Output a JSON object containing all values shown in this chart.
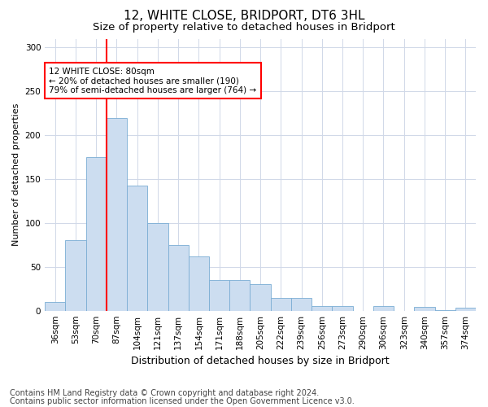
{
  "title": "12, WHITE CLOSE, BRIDPORT, DT6 3HL",
  "subtitle": "Size of property relative to detached houses in Bridport",
  "xlabel": "Distribution of detached houses by size in Bridport",
  "ylabel": "Number of detached properties",
  "categories": [
    "36sqm",
    "53sqm",
    "70sqm",
    "87sqm",
    "104sqm",
    "121sqm",
    "137sqm",
    "154sqm",
    "171sqm",
    "188sqm",
    "205sqm",
    "222sqm",
    "239sqm",
    "256sqm",
    "273sqm",
    "290sqm",
    "306sqm",
    "323sqm",
    "340sqm",
    "357sqm",
    "374sqm"
  ],
  "values": [
    10,
    80,
    175,
    220,
    143,
    100,
    75,
    62,
    35,
    35,
    30,
    15,
    15,
    5,
    5,
    0,
    5,
    0,
    4,
    1,
    3
  ],
  "bar_color": "#ccddf0",
  "bar_edge_color": "#7aadd4",
  "grid_color": "#d0d8e8",
  "vline_x": 2.5,
  "vline_color": "red",
  "annotation_text": "12 WHITE CLOSE: 80sqm\n← 20% of detached houses are smaller (190)\n79% of semi-detached houses are larger (764) →",
  "annotation_box_color": "white",
  "annotation_box_edge": "red",
  "ylim": [
    0,
    310
  ],
  "yticks": [
    0,
    50,
    100,
    150,
    200,
    250,
    300
  ],
  "footnote1": "Contains HM Land Registry data © Crown copyright and database right 2024.",
  "footnote2": "Contains public sector information licensed under the Open Government Licence v3.0.",
  "title_fontsize": 11,
  "subtitle_fontsize": 9.5,
  "xlabel_fontsize": 9,
  "ylabel_fontsize": 8,
  "tick_fontsize": 7.5,
  "annotation_fontsize": 7.5,
  "footnote_fontsize": 7,
  "background_color": "#ffffff"
}
